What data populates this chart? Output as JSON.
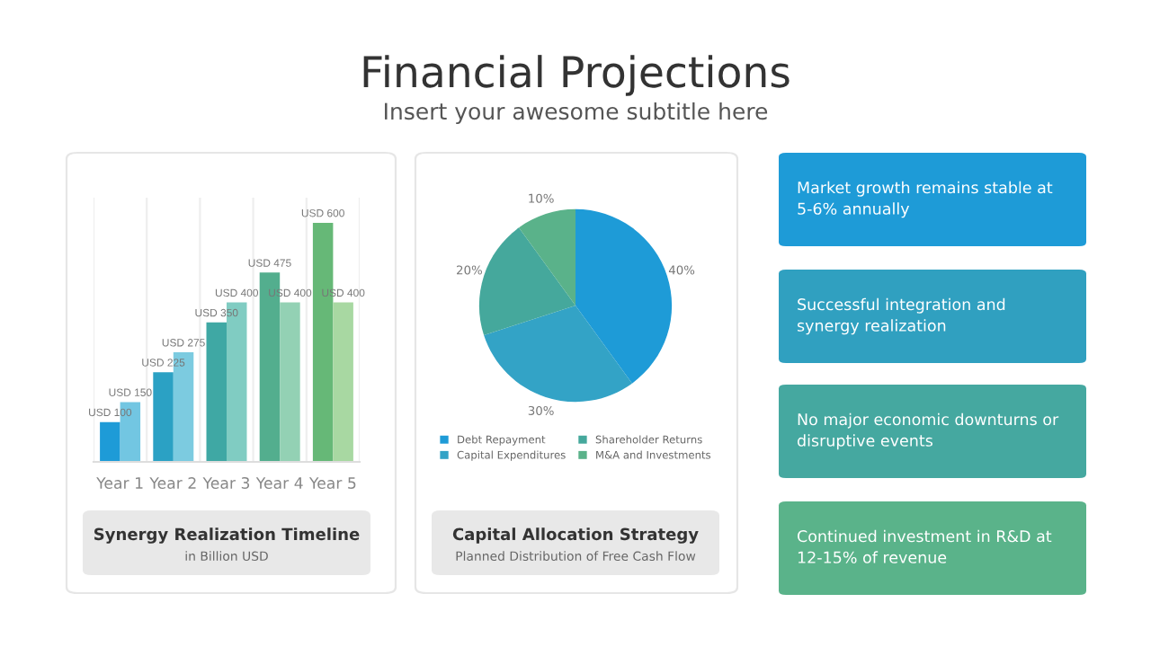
{
  "chart_data": [
    {
      "type": "other",
      "title": "Financial Projections",
      "subtitle": "Insert your awesome subtitle here"
    },
    {
      "type": "bar",
      "title": "Synergy Realization Timeline",
      "subtitle": "in Billion USD",
      "categories": [
        "Year 1",
        "Year 2",
        "Year 3",
        "Year 4",
        "Year 5"
      ],
      "tick_labels": "x",
      "grid": "x",
      "series": [
        {
          "colors": [
            "#1e9bd7",
            "#2ba1c4",
            "#3fa8a4",
            "#53ae8e",
            "#66b877"
          ],
          "values": [
            100,
            225,
            350,
            475,
            600
          ],
          "value_labels": [
            "USD 100",
            "USD 225",
            "USD 350",
            "USD 475",
            "USD 600"
          ]
        },
        {
          "colors": [
            "#72c6e2",
            "#7ccbe0",
            "#80ccc2",
            "#93d1b4",
            "#a8d8a2"
          ],
          "values": [
            150,
            275,
            400,
            400,
            400
          ],
          "value_labels": [
            "USD 150",
            "USD 275",
            "USD 400",
            "USD 400",
            "USD 400"
          ]
        }
      ]
    },
    {
      "type": "pie",
      "title": "Capital Allocation Strategy",
      "subtitle": "Planned Distribution of Free Cash Flow",
      "categories": [
        "Debt Repayment",
        "Capital Expenditures",
        "Shareholder Returns",
        "M&A and Investments"
      ],
      "values": [
        40,
        30,
        20,
        10
      ],
      "colors": [
        "#1e9bd7",
        "#33a3c6",
        "#45a89c",
        "#5ab28a"
      ],
      "value_labels": [
        "40%",
        "30%",
        "20%",
        "10%"
      ],
      "legend": "bottom"
    },
    {
      "type": "other",
      "colors": [
        "#1e9bd7",
        "#30a0c0",
        "#45a8a0",
        "#5ab38a"
      ],
      "annotations": [
        "Market growth remains stable at 5-6% annually",
        "Successful integration and synergy realization",
        "No major economic downturns or disruptive events",
        "Continued investment in R&D at 12-15% of revenue"
      ]
    }
  ]
}
